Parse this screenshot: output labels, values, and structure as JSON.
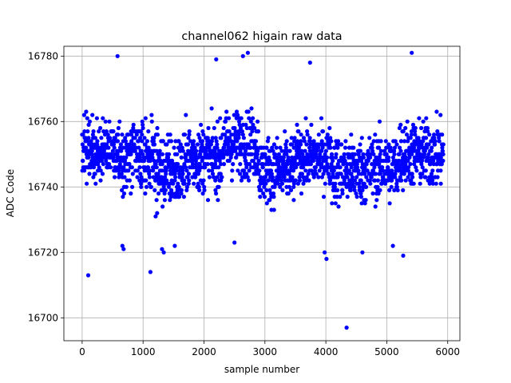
{
  "chart_data": {
    "type": "scatter",
    "title": "channel062 higain raw data",
    "xlabel": "sample number",
    "ylabel": "ADC Code",
    "xlim": [
      -300,
      6200
    ],
    "ylim": [
      16693,
      16783
    ],
    "xticks": [
      0,
      1000,
      2000,
      3000,
      4000,
      5000,
      6000
    ],
    "yticks": [
      16700,
      16720,
      16740,
      16760,
      16780
    ],
    "xtick_labels": [
      "0",
      "1000",
      "2000",
      "3000",
      "4000",
      "5000",
      "6000"
    ],
    "ytick_labels": [
      "16700",
      "16720",
      "16740",
      "16760",
      "16780"
    ],
    "grid": true,
    "marker_color": "#0000ff",
    "series": [
      {
        "name": "",
        "segments": [
          {
            "x_range": [
              0,
              600
            ],
            "center": 16751,
            "spread": 7
          },
          {
            "x_range": [
              600,
              1200
            ],
            "center": 16749,
            "spread": 8
          },
          {
            "x_range": [
              1200,
              1700
            ],
            "center": 16745,
            "spread": 9
          },
          {
            "x_range": [
              1700,
              2300
            ],
            "center": 16749,
            "spread": 8
          },
          {
            "x_range": [
              2300,
              2900
            ],
            "center": 16753,
            "spread": 8
          },
          {
            "x_range": [
              2900,
              3500
            ],
            "center": 16745,
            "spread": 8
          },
          {
            "x_range": [
              3500,
              4100
            ],
            "center": 16749,
            "spread": 7
          },
          {
            "x_range": [
              4100,
              4700
            ],
            "center": 16745,
            "spread": 8
          },
          {
            "x_range": [
              4700,
              5200
            ],
            "center": 16746,
            "spread": 8
          },
          {
            "x_range": [
              5200,
              5930
            ],
            "center": 16750,
            "spread": 8
          }
        ],
        "outliers": [
          {
            "x": 100,
            "y": 16713
          },
          {
            "x": 580,
            "y": 16780
          },
          {
            "x": 1120,
            "y": 16714
          },
          {
            "x": 2200,
            "y": 16779
          },
          {
            "x": 2640,
            "y": 16780
          },
          {
            "x": 2720,
            "y": 16781
          },
          {
            "x": 3740,
            "y": 16778
          },
          {
            "x": 3980,
            "y": 16720
          },
          {
            "x": 4010,
            "y": 16718
          },
          {
            "x": 4340,
            "y": 16697
          },
          {
            "x": 5410,
            "y": 16781
          },
          {
            "x": 5270,
            "y": 16719
          },
          {
            "x": 1310,
            "y": 16721
          },
          {
            "x": 1340,
            "y": 16720
          },
          {
            "x": 660,
            "y": 16722
          },
          {
            "x": 680,
            "y": 16721
          },
          {
            "x": 1520,
            "y": 16722
          },
          {
            "x": 2500,
            "y": 16723
          },
          {
            "x": 4600,
            "y": 16720
          },
          {
            "x": 5100,
            "y": 16722
          }
        ]
      }
    ]
  }
}
